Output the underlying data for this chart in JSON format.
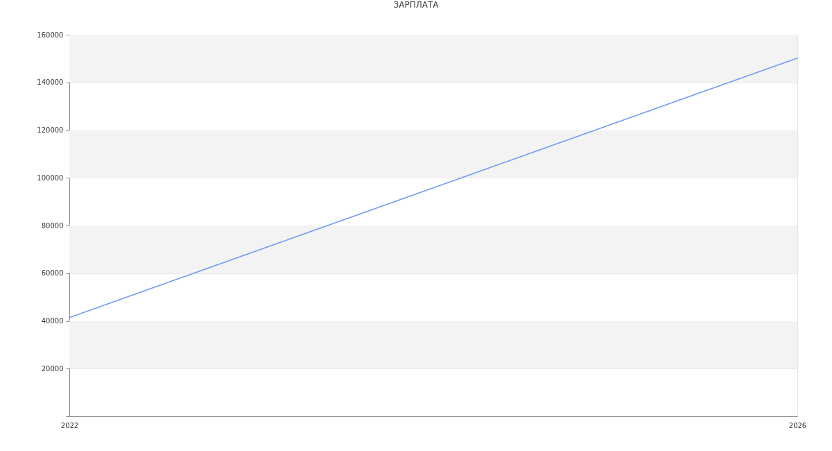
{
  "chart_data": {
    "type": "line",
    "title": "ЗАРПЛАТА",
    "x": [
      2022,
      2026
    ],
    "series": [
      {
        "color": "#6e9ef0",
        "values": [
          41400,
          150200
        ]
      }
    ],
    "xlim": [
      2022,
      2026
    ],
    "xticks": [
      2022,
      2026
    ],
    "ylim": [
      0,
      160000
    ],
    "yticks": [
      {
        "value": 0,
        "label": null
      },
      20000,
      40000,
      60000,
      80000,
      100000,
      120000,
      140000,
      160000
    ],
    "grid": true
  }
}
